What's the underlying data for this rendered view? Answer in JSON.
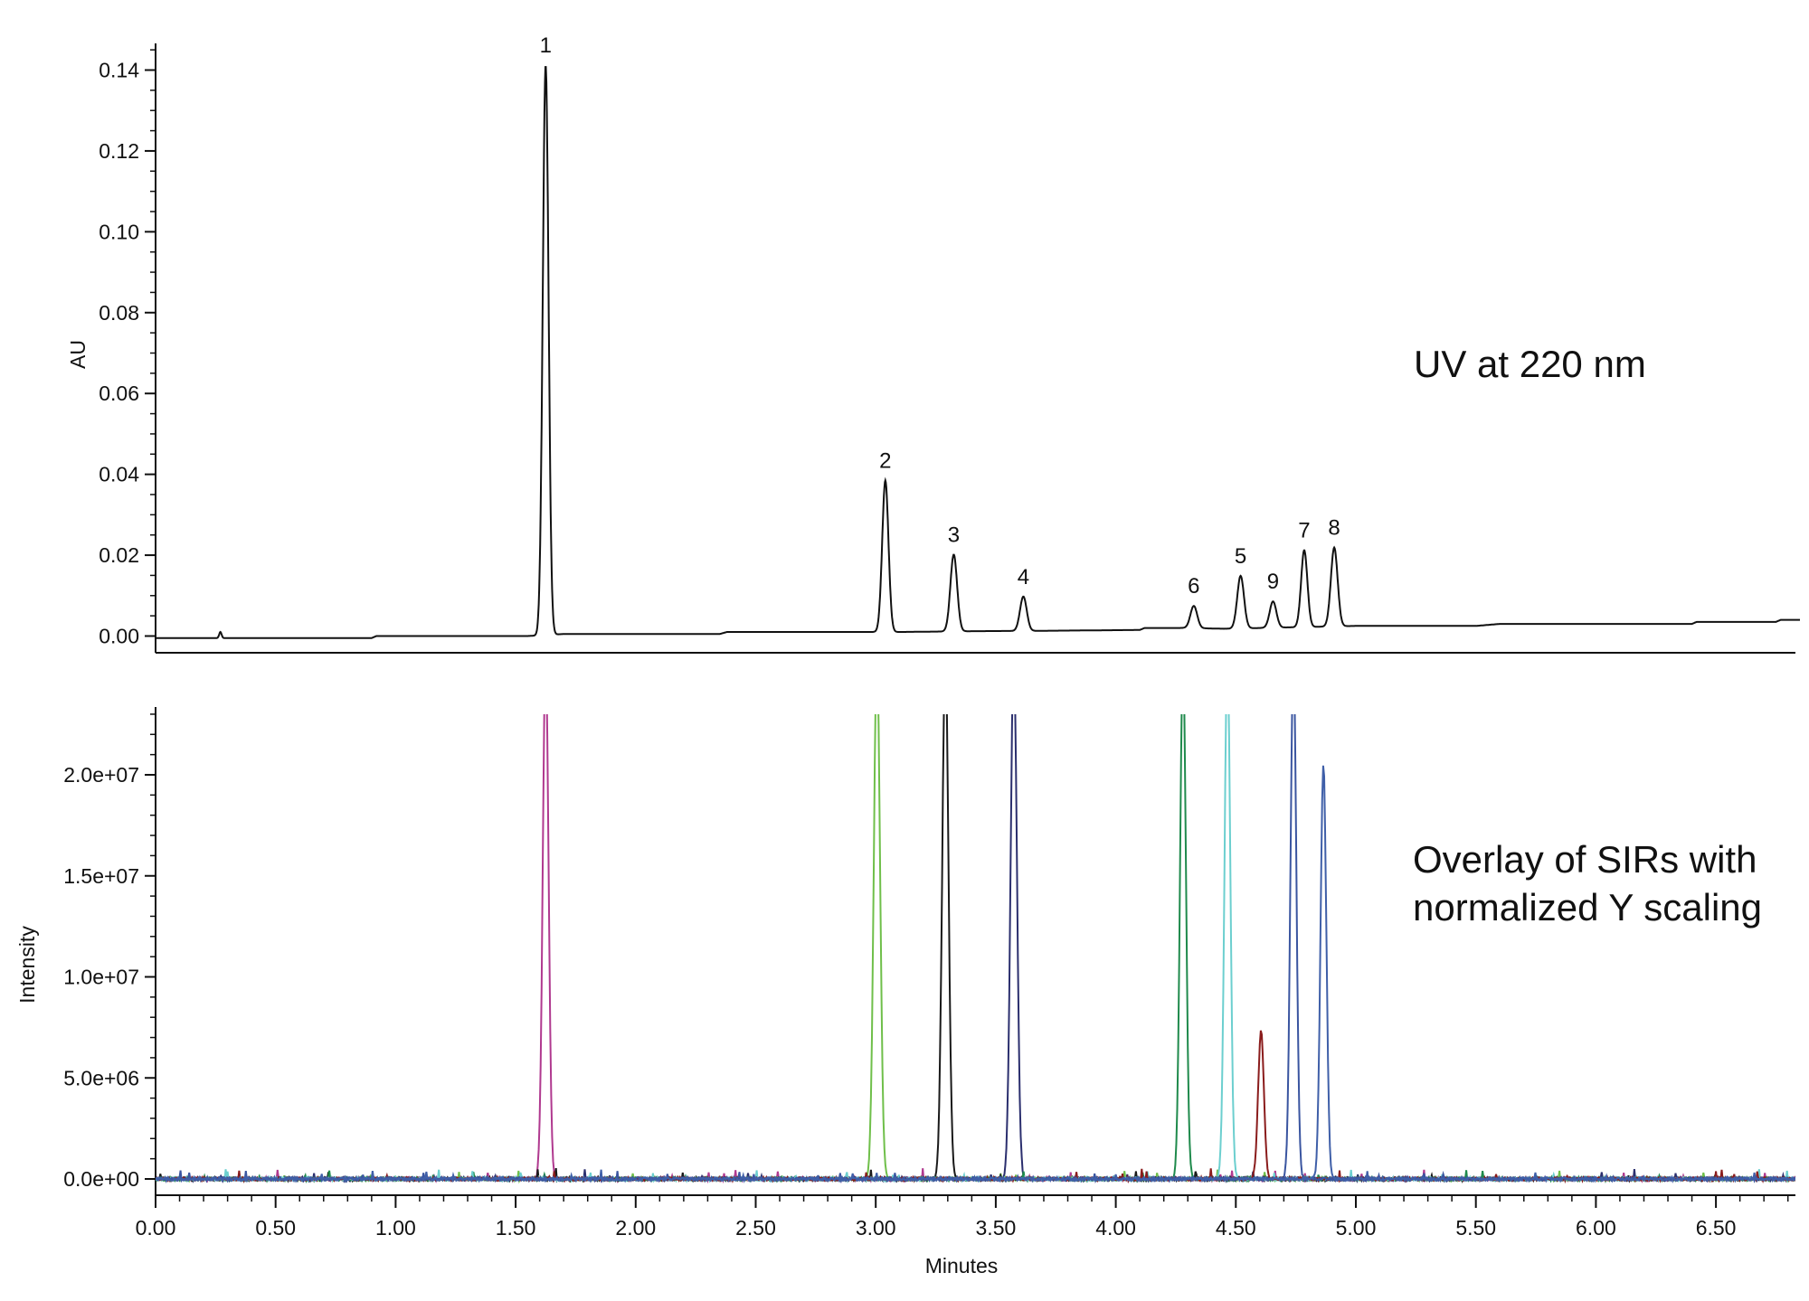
{
  "chart_data": [
    {
      "type": "line",
      "title": "",
      "annotation": "UV at 220 nm",
      "xlabel": "",
      "ylabel": "AU",
      "xlim": [
        0.0,
        6.85
      ],
      "ylim": [
        -0.004,
        0.145
      ],
      "yticks": [
        0.0,
        0.02,
        0.04,
        0.06,
        0.08,
        0.1,
        0.12,
        0.14
      ],
      "ytick_labels": [
        "0.00",
        "0.02",
        "0.04",
        "0.06",
        "0.08",
        "0.10",
        "0.12",
        "0.14"
      ],
      "grid": false,
      "series": [
        {
          "color": "#111111",
          "baseline": [
            [
              0.0,
              -0.0005
            ],
            [
              0.9,
              -0.0005
            ],
            [
              0.92,
              0.0
            ],
            [
              1.55,
              0.0
            ],
            [
              1.7,
              0.0005
            ],
            [
              2.35,
              0.0005
            ],
            [
              2.38,
              0.001
            ],
            [
              3.1,
              0.001
            ],
            [
              3.4,
              0.0012
            ],
            [
              3.7,
              0.0013
            ],
            [
              4.1,
              0.0015
            ],
            [
              4.12,
              0.002
            ],
            [
              4.3,
              0.002
            ],
            [
              4.45,
              0.0018
            ],
            [
              5.0,
              0.0025
            ],
            [
              5.5,
              0.0025
            ],
            [
              5.6,
              0.003
            ],
            [
              6.4,
              0.003
            ],
            [
              6.42,
              0.0035
            ],
            [
              6.75,
              0.0035
            ],
            [
              6.77,
              0.004
            ],
            [
              6.85,
              0.004
            ]
          ],
          "peaks": [
            {
              "label": "1",
              "rt": 1.625,
              "height": 0.141,
              "width": 0.012
            },
            {
              "label": "2",
              "rt": 3.04,
              "height": 0.0375,
              "width": 0.013
            },
            {
              "label": "3",
              "rt": 3.325,
              "height": 0.019,
              "width": 0.014
            },
            {
              "label": "4",
              "rt": 3.615,
              "height": 0.0085,
              "width": 0.014
            },
            {
              "label": "6",
              "rt": 4.325,
              "height": 0.0055,
              "width": 0.014
            },
            {
              "label": "5",
              "rt": 4.52,
              "height": 0.013,
              "width": 0.014
            },
            {
              "label": "9",
              "rt": 4.655,
              "height": 0.0065,
              "width": 0.014
            },
            {
              "label": "7",
              "rt": 4.785,
              "height": 0.019,
              "width": 0.013
            },
            {
              "label": "8",
              "rt": 4.91,
              "height": 0.0195,
              "width": 0.014
            }
          ],
          "spikes": [
            {
              "rt": 0.27,
              "height": 0.0015
            }
          ]
        }
      ]
    },
    {
      "type": "line",
      "title": "",
      "annotation_lines": [
        "Overlay of SIRs with",
        "normalized Y scaling"
      ],
      "xlabel": "Minutes",
      "ylabel": "Intensity",
      "xlim": [
        0.0,
        6.85
      ],
      "ylim": [
        -700000,
        23000000
      ],
      "xticks": [
        0.0,
        0.5,
        1.0,
        1.5,
        2.0,
        2.5,
        3.0,
        3.5,
        4.0,
        4.5,
        5.0,
        5.5,
        6.0,
        6.5
      ],
      "xtick_labels": [
        "0.00",
        "0.50",
        "1.00",
        "1.50",
        "2.00",
        "2.50",
        "3.00",
        "3.50",
        "4.00",
        "4.50",
        "5.00",
        "5.50",
        "6.00",
        "6.50"
      ],
      "yticks": [
        0,
        5000000,
        10000000,
        15000000,
        20000000
      ],
      "ytick_labels": [
        "0.0e+00",
        "5.0e+06",
        "1.0e+07",
        "1.5e+07",
        "2.0e+07"
      ],
      "grid": false,
      "series": [
        {
          "color": "#b0398f",
          "rt": 1.625,
          "height": 23000000,
          "width": 0.012
        },
        {
          "color": "#6fbf4a",
          "rt": 3.005,
          "height": 23000000,
          "width": 0.013
        },
        {
          "color": "#1a1a1a",
          "rt": 3.29,
          "height": 23000000,
          "width": 0.013
        },
        {
          "color": "#2b2f6e",
          "rt": 3.575,
          "height": 23000000,
          "width": 0.013
        },
        {
          "color": "#1f8a4c",
          "rt": 4.28,
          "height": 23000000,
          "width": 0.012
        },
        {
          "color": "#6ccfcf",
          "rt": 4.465,
          "height": 23000000,
          "width": 0.012
        },
        {
          "color": "#8a1c1c",
          "rt": 4.605,
          "height": 7300000,
          "width": 0.012
        },
        {
          "color": "#3a55a0",
          "rt": 4.74,
          "height": 23000000,
          "width": 0.012
        },
        {
          "color": "#3f5fa8",
          "rt": 4.865,
          "height": 20500000,
          "width": 0.012
        }
      ]
    }
  ]
}
